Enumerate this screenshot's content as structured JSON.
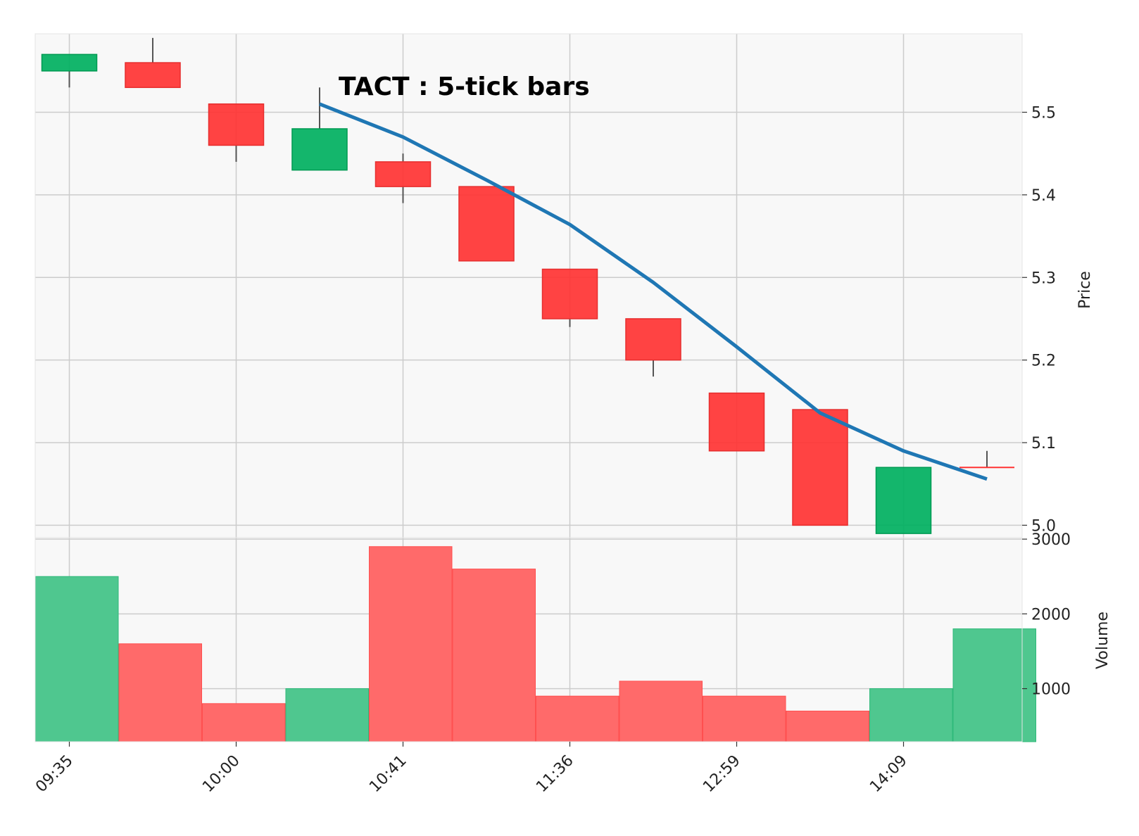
{
  "chart_data": {
    "type": "candlestick",
    "title": "TACT : 5-tick bars",
    "price_axis_label": "Price",
    "volume_axis_label": "Volume",
    "price_ticks": [
      "5.0",
      "5.1",
      "5.2",
      "5.3",
      "5.4",
      "5.5"
    ],
    "volume_ticks": [
      "1000",
      "2000",
      "3000"
    ],
    "x_tick_labels": [
      {
        "index": 0,
        "label": "09:35"
      },
      {
        "index": 2,
        "label": "10:00"
      },
      {
        "index": 4,
        "label": "10:41"
      },
      {
        "index": 6,
        "label": "11:36"
      },
      {
        "index": 8,
        "label": "12:59"
      },
      {
        "index": 10,
        "label": "14:09"
      }
    ],
    "ylim_price": [
      4.985,
      5.595
    ],
    "ylim_volume": [
      290,
      3020
    ],
    "grid": true,
    "bars": [
      {
        "open": 5.55,
        "high": 5.57,
        "low": 5.53,
        "close": 5.57,
        "volume": 2500
      },
      {
        "open": 5.56,
        "high": 5.59,
        "low": 5.53,
        "close": 5.53,
        "volume": 1600
      },
      {
        "open": 5.51,
        "high": 5.51,
        "low": 5.44,
        "close": 5.46,
        "volume": 800
      },
      {
        "open": 5.43,
        "high": 5.53,
        "low": 5.43,
        "close": 5.48,
        "volume": 1000
      },
      {
        "open": 5.44,
        "high": 5.45,
        "low": 5.39,
        "close": 5.41,
        "volume": 2900
      },
      {
        "open": 5.41,
        "high": 5.41,
        "low": 5.32,
        "close": 5.32,
        "volume": 2600
      },
      {
        "open": 5.31,
        "high": 5.31,
        "low": 5.24,
        "close": 5.25,
        "volume": 900
      },
      {
        "open": 5.25,
        "high": 5.25,
        "low": 5.18,
        "close": 5.2,
        "volume": 1100
      },
      {
        "open": 5.16,
        "high": 5.16,
        "low": 5.09,
        "close": 5.09,
        "volume": 900
      },
      {
        "open": 5.14,
        "high": 5.14,
        "low": 5.0,
        "close": 5.0,
        "volume": 700
      },
      {
        "open": 4.99,
        "high": 5.07,
        "low": 4.99,
        "close": 5.07,
        "volume": 1000
      },
      {
        "open": 5.07,
        "high": 5.09,
        "low": 5.07,
        "close": 5.07,
        "volume": 1800
      }
    ],
    "moving_average": {
      "start_index": 3,
      "values": [
        5.51,
        5.47,
        5.418,
        5.364,
        5.294,
        5.216,
        5.136,
        5.09,
        5.056
      ]
    }
  },
  "colors": {
    "up": "#00b060",
    "down": "#ff3333",
    "up_volume": "#4fc78f",
    "down_volume": "#ff6a6a",
    "wick": "#555555",
    "ma_line": "#1f77b4",
    "plot_bg": "#f8f8f8",
    "grid": "#cccccc"
  }
}
